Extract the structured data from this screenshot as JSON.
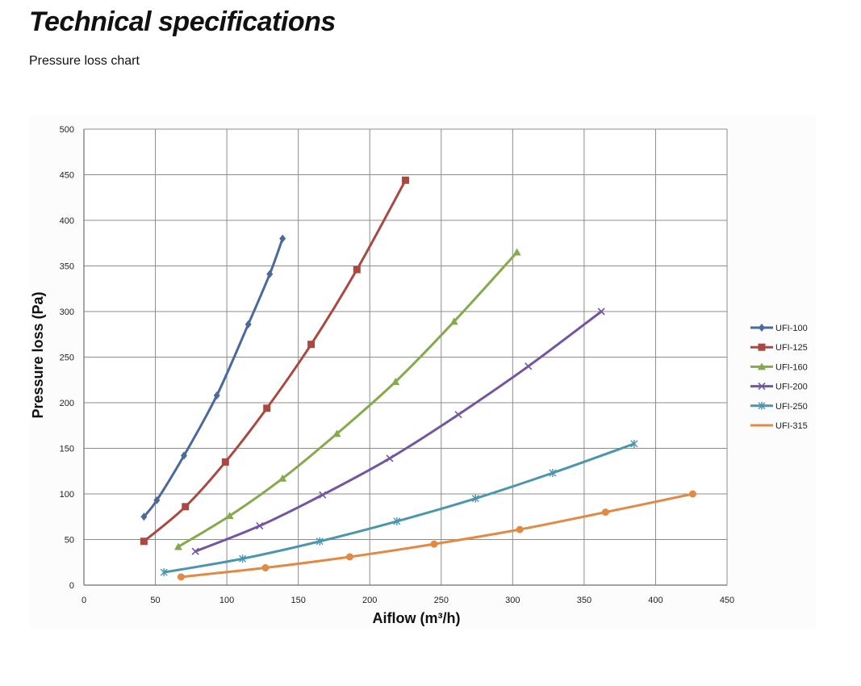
{
  "page": {
    "title": "Technical specifications",
    "subtitle": "Pressure loss chart"
  },
  "chart_data": {
    "type": "line",
    "title": "Pressure loss chart",
    "xlabel": "Aiflow (m³/h)",
    "ylabel": "Pressure loss (Pa)",
    "xlim": [
      0,
      450
    ],
    "ylim": [
      0,
      500
    ],
    "xticks": [
      0,
      50,
      100,
      150,
      200,
      250,
      300,
      350,
      400,
      450
    ],
    "yticks": [
      0,
      50,
      100,
      150,
      200,
      250,
      300,
      350,
      400,
      450,
      500
    ],
    "grid": true,
    "legend_position": "right",
    "series": [
      {
        "name": "UFI-100",
        "color": "#4a6a9b",
        "marker": "diamond",
        "x": [
          42,
          51,
          70,
          93,
          115,
          130,
          139
        ],
        "y": [
          75,
          93,
          142,
          208,
          286,
          341,
          380
        ]
      },
      {
        "name": "UFI-125",
        "color": "#a84a42",
        "marker": "square",
        "x": [
          42,
          71,
          99,
          128,
          159,
          191,
          225
        ],
        "y": [
          48,
          86,
          135,
          194,
          264,
          346,
          444
        ]
      },
      {
        "name": "UFI-160",
        "color": "#85a94d",
        "marker": "triangle",
        "x": [
          66,
          102,
          139,
          177,
          218,
          259,
          303
        ],
        "y": [
          42,
          76,
          117,
          166,
          223,
          289,
          365
        ]
      },
      {
        "name": "UFI-200",
        "color": "#7257a0",
        "marker": "x",
        "x": [
          78,
          123,
          167,
          214,
          262,
          311,
          362
        ],
        "y": [
          37,
          65,
          99,
          139,
          187,
          240,
          300
        ]
      },
      {
        "name": "UFI-250",
        "color": "#4b96ae",
        "marker": "star",
        "x": [
          56,
          111,
          165,
          219,
          274,
          328,
          385
        ],
        "y": [
          14,
          29,
          48,
          70,
          95,
          123,
          155
        ]
      },
      {
        "name": "UFI-315",
        "color": "#e08a45",
        "marker": "circle",
        "x": [
          68,
          127,
          186,
          245,
          305,
          365,
          426
        ],
        "y": [
          9,
          19,
          31,
          45,
          61,
          80,
          100
        ]
      }
    ]
  }
}
